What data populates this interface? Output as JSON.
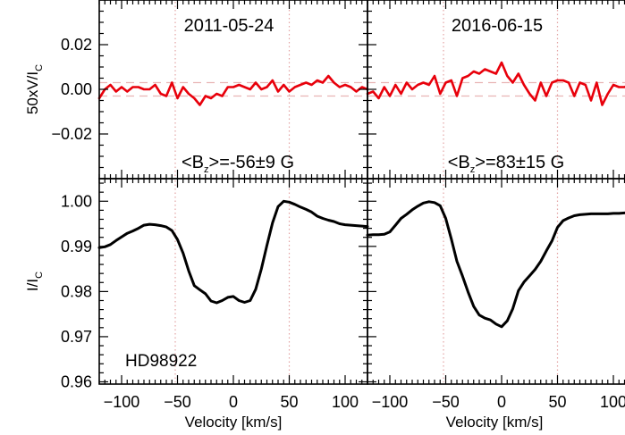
{
  "star_label": "HD98922",
  "chart_data": {
    "type": "line",
    "x_axis": {
      "label": "Velocity [km/s]",
      "range": [
        -120,
        120
      ],
      "ticks": [
        -100,
        -50,
        0,
        50,
        100
      ],
      "tick_labels": [
        "−100",
        "−50",
        "0",
        "50",
        "100"
      ]
    },
    "panels": [
      {
        "column": 0,
        "row": "stokes_v",
        "title": "2011-05-24",
        "ylabel_main": "50xV/I",
        "ylabel_sub": "C",
        "ylim": [
          -0.04,
          0.04
        ],
        "yticks": [
          -0.02,
          0.0,
          0.02
        ],
        "ytick_labels": [
          "−0.02",
          "0.00",
          "0.02"
        ],
        "dashed_levels": [
          0.003,
          -0.003
        ],
        "vlines": [
          -52,
          50
        ],
        "annotation_parts": [
          "<B",
          "z",
          ">=-56±9 G"
        ],
        "series": {
          "color": "#e8000b",
          "x": [
            -120,
            -115,
            -110,
            -105,
            -100,
            -95,
            -90,
            -85,
            -80,
            -75,
            -70,
            -65,
            -60,
            -55,
            -50,
            -45,
            -40,
            -35,
            -30,
            -25,
            -20,
            -15,
            -10,
            -5,
            0,
            5,
            10,
            15,
            20,
            25,
            30,
            35,
            40,
            45,
            50,
            55,
            60,
            65,
            70,
            75,
            80,
            85,
            90,
            95,
            100,
            105,
            110,
            115,
            120
          ],
          "y": [
            -0.004,
            0.0,
            0.002,
            -0.001,
            0.001,
            -0.001,
            0.001,
            0.001,
            0.0,
            0.0,
            0.002,
            -0.002,
            -0.003,
            0.003,
            -0.004,
            0.001,
            -0.002,
            -0.004,
            -0.007,
            -0.003,
            -0.004,
            -0.002,
            -0.003,
            0.001,
            0.001,
            0.002,
            0.001,
            0.0,
            0.003,
            0.0,
            0.001,
            0.004,
            -0.001,
            0.002,
            -0.001,
            0.001,
            0.002,
            0.003,
            0.002,
            0.004,
            0.003,
            0.006,
            0.003,
            0.001,
            0.002,
            0.001,
            -0.001,
            0.001,
            0.0
          ]
        }
      },
      {
        "column": 1,
        "row": "stokes_v",
        "title": "2016-06-15",
        "ylim": [
          -0.04,
          0.04
        ],
        "dashed_levels": [
          0.003,
          -0.003
        ],
        "vlines": [
          -52,
          50
        ],
        "annotation_parts": [
          "<B",
          "z",
          ">=83±15 G"
        ],
        "series": {
          "color": "#e8000b",
          "x": [
            -120,
            -115,
            -110,
            -105,
            -100,
            -95,
            -90,
            -85,
            -80,
            -75,
            -70,
            -65,
            -60,
            -55,
            -50,
            -45,
            -40,
            -35,
            -30,
            -25,
            -20,
            -15,
            -10,
            -5,
            0,
            5,
            10,
            15,
            20,
            25,
            30,
            35,
            40,
            45,
            50,
            55,
            60,
            65,
            70,
            75,
            80,
            85,
            90,
            95,
            100,
            105,
            110,
            115,
            120
          ],
          "y": [
            -0.002,
            -0.001,
            -0.004,
            0.001,
            -0.003,
            0.002,
            -0.002,
            0.003,
            0.0,
            0.002,
            0.003,
            0.002,
            0.006,
            -0.002,
            0.003,
            0.004,
            -0.003,
            0.005,
            0.006,
            0.008,
            0.007,
            0.009,
            0.008,
            0.007,
            0.012,
            0.006,
            0.003,
            0.007,
            0.002,
            -0.002,
            -0.005,
            0.003,
            -0.003,
            0.003,
            0.004,
            0.004,
            0.003,
            -0.003,
            0.003,
            0.002,
            -0.005,
            0.003,
            -0.007,
            -0.002,
            0.002,
            0.001,
            0.001,
            0.002,
            0.002
          ]
        }
      },
      {
        "column": 0,
        "row": "stokes_i",
        "ylabel_main": "I/I",
        "ylabel_sub": "C",
        "ylim": [
          0.9595,
          1.005
        ],
        "yticks": [
          0.96,
          0.97,
          0.98,
          0.99,
          1.0
        ],
        "ytick_labels": [
          "0.96",
          "0.97",
          "0.98",
          "0.99",
          "1.00"
        ],
        "vlines": [
          -52,
          50
        ],
        "series": {
          "color": "#000000",
          "x": [
            -120,
            -115,
            -110,
            -105,
            -100,
            -95,
            -90,
            -85,
            -80,
            -75,
            -70,
            -65,
            -60,
            -55,
            -50,
            -45,
            -40,
            -35,
            -30,
            -25,
            -20,
            -15,
            -10,
            -5,
            0,
            5,
            10,
            15,
            20,
            25,
            30,
            35,
            40,
            45,
            50,
            55,
            60,
            65,
            70,
            75,
            80,
            85,
            90,
            95,
            100,
            105,
            110,
            115,
            120
          ],
          "y": [
            0.9897,
            0.9899,
            0.9904,
            0.9913,
            0.9921,
            0.9929,
            0.9934,
            0.994,
            0.9947,
            0.9949,
            0.9948,
            0.9946,
            0.9943,
            0.9935,
            0.9915,
            0.9885,
            0.9846,
            0.9813,
            0.9804,
            0.9795,
            0.9779,
            0.9775,
            0.978,
            0.9787,
            0.9789,
            0.978,
            0.9776,
            0.978,
            0.9805,
            0.985,
            0.9902,
            0.9952,
            0.9988,
            1.0,
            0.9998,
            0.9993,
            0.9987,
            0.9982,
            0.9976,
            0.9967,
            0.9962,
            0.9958,
            0.9955,
            0.995,
            0.9948,
            0.9947,
            0.9946,
            0.9945,
            0.9944
          ]
        }
      },
      {
        "column": 1,
        "row": "stokes_i",
        "ylim": [
          0.9595,
          1.005
        ],
        "vlines": [
          -52,
          50
        ],
        "series": {
          "color": "#000000",
          "x": [
            -120,
            -115,
            -110,
            -105,
            -100,
            -95,
            -90,
            -85,
            -80,
            -75,
            -70,
            -65,
            -60,
            -55,
            -50,
            -45,
            -40,
            -35,
            -30,
            -25,
            -20,
            -15,
            -10,
            -5,
            0,
            5,
            10,
            15,
            20,
            25,
            30,
            35,
            40,
            45,
            50,
            55,
            60,
            65,
            70,
            75,
            80,
            85,
            90,
            95,
            100,
            105,
            110,
            115,
            120
          ],
          "y": [
            0.9925,
            0.9926,
            0.9926,
            0.9927,
            0.9932,
            0.9947,
            0.9962,
            0.9971,
            0.9981,
            0.9989,
            0.9996,
            0.9999,
            0.9997,
            0.999,
            0.9962,
            0.9916,
            0.9867,
            0.9834,
            0.9799,
            0.9767,
            0.9748,
            0.9741,
            0.9737,
            0.9728,
            0.9722,
            0.9735,
            0.9762,
            0.9802,
            0.9821,
            0.9835,
            0.9849,
            0.9867,
            0.989,
            0.9912,
            0.9942,
            0.9957,
            0.9963,
            0.9968,
            0.997,
            0.9971,
            0.9972,
            0.9972,
            0.9972,
            0.9972,
            0.9973,
            0.9973,
            0.9974,
            0.9974,
            0.9975
          ]
        }
      }
    ]
  }
}
